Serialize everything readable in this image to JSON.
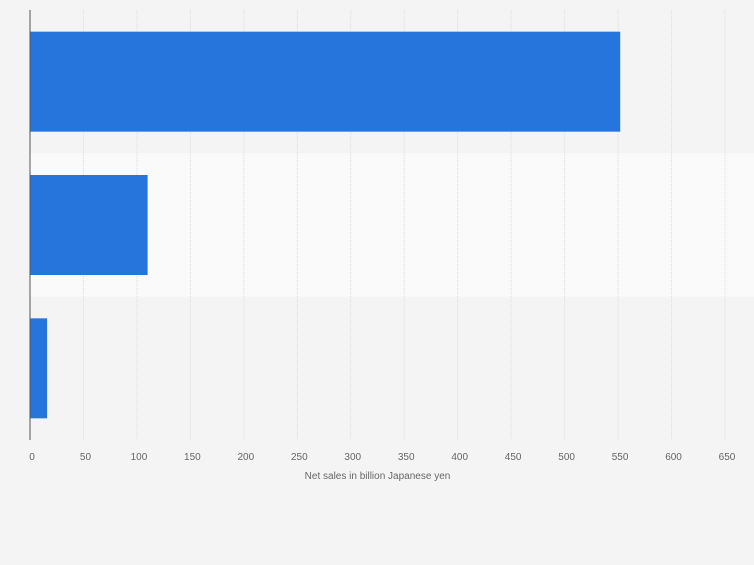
{
  "chart_data": {
    "type": "bar",
    "orientation": "horizontal",
    "categories": [
      "",
      "",
      ""
    ],
    "values": [
      552,
      110,
      16
    ],
    "title": "",
    "xlabel": "Net sales in billion Japanese yen",
    "ylabel": "",
    "xlim": [
      0,
      650
    ],
    "xticks": [
      "0",
      "50",
      "100",
      "150",
      "200",
      "250",
      "300",
      "350",
      "400",
      "450",
      "500",
      "550",
      "600",
      "650"
    ],
    "grid": true,
    "legend": "none",
    "colors": {
      "bar": "#2575dd",
      "background": "#f4f4f4",
      "band_alt": "#fafafa",
      "gridline": "#dcdcdc",
      "axis": "#555555",
      "text": "#666666"
    }
  }
}
